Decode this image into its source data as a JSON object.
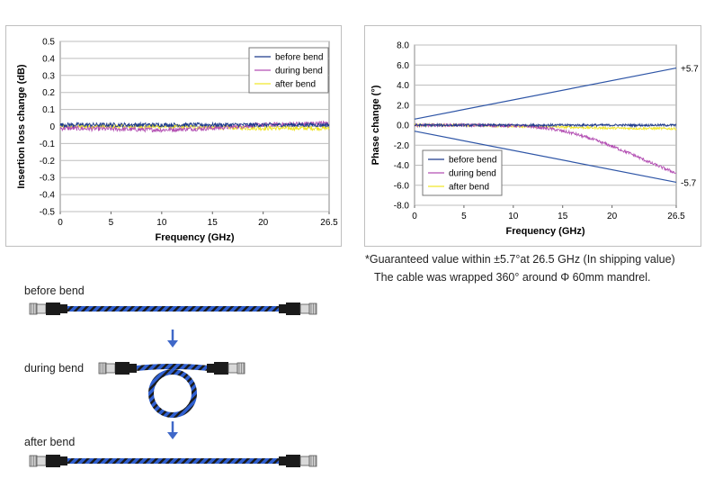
{
  "colors": {
    "before": "#1f3b8c",
    "during": "#b34fb3",
    "after": "#f0e62a",
    "guarantee": "#2e55a6",
    "grid": "#bdbdbd",
    "cable_blue": "#2f5fd0",
    "cable_dark": "#1b1b1b",
    "arrow": "#3f68c8"
  },
  "chart_data": [
    {
      "type": "line",
      "xlabel": "Frequency (GHz)",
      "ylabel": "Insertion loss change (dB)",
      "xlim": [
        0,
        26.5
      ],
      "ylim": [
        -0.5,
        0.5
      ],
      "x_ticks": [
        0,
        5,
        10,
        15,
        20,
        26.5
      ],
      "x_tick_labels": [
        "0",
        "5",
        "10",
        "15",
        "20",
        "26.5"
      ],
      "y_ticks": [
        0.5,
        0.4,
        0.3,
        0.2,
        0.1,
        0,
        -0.1,
        -0.2,
        -0.3,
        -0.4,
        -0.5
      ],
      "y_tick_labels": [
        "0.5",
        "0.4",
        "0.3",
        "0.2",
        "0.1",
        "0",
        "-0.1",
        "-0.2",
        "-0.3",
        "-0.4",
        "-0.5"
      ],
      "grid": true,
      "legend_position": "top-right",
      "series": [
        {
          "name": "before bend",
          "x": [
            0,
            5,
            10,
            15,
            20,
            26.5
          ],
          "y": [
            0.01,
            0.01,
            0.01,
            0.01,
            0.01,
            0.01
          ],
          "noise": 0.012
        },
        {
          "name": "during bend",
          "x": [
            0,
            5,
            10,
            15,
            20,
            26.5
          ],
          "y": [
            -0.01,
            -0.015,
            -0.02,
            -0.01,
            0.01,
            0.02
          ],
          "noise": 0.013
        },
        {
          "name": "after bend",
          "x": [
            0,
            5,
            10,
            15,
            20,
            26.5
          ],
          "y": [
            0.0,
            0.0,
            0.0,
            -0.005,
            -0.01,
            -0.01
          ],
          "noise": 0.013
        }
      ]
    },
    {
      "type": "line",
      "xlabel": "Frequency (GHz)",
      "ylabel": "Phase change (°)",
      "xlim": [
        0,
        26.5
      ],
      "ylim": [
        -8,
        8
      ],
      "x_ticks": [
        0,
        5,
        10,
        15,
        20,
        26.5
      ],
      "x_tick_labels": [
        "0",
        "5",
        "10",
        "15",
        "20",
        "26.5"
      ],
      "y_ticks": [
        8,
        6,
        4,
        2,
        0,
        -2,
        -4,
        -6,
        -8
      ],
      "y_tick_labels": [
        "8.0",
        "6.0",
        "4.0",
        "2.0",
        "0.0",
        "-2.0",
        "-4.0",
        "-6.0",
        "-8.0"
      ],
      "grid": true,
      "legend_position": "bottom-left",
      "series": [
        {
          "name": "before bend",
          "x": [
            0,
            5,
            10,
            15,
            20,
            26.5
          ],
          "y": [
            0.0,
            0.0,
            0.0,
            0.0,
            0.0,
            0.0
          ],
          "noise": 0.12
        },
        {
          "name": "during bend",
          "x": [
            0,
            5,
            10,
            12,
            14,
            16,
            18,
            20,
            22,
            24,
            26.5
          ],
          "y": [
            0.0,
            0.0,
            -0.05,
            -0.15,
            -0.4,
            -0.8,
            -1.4,
            -2.1,
            -2.9,
            -3.8,
            -4.8
          ],
          "noise": 0.15
        },
        {
          "name": "after bend",
          "x": [
            0,
            5,
            10,
            15,
            20,
            26.5
          ],
          "y": [
            0.0,
            0.0,
            -0.1,
            -0.2,
            -0.3,
            -0.35
          ],
          "noise": 0.12
        }
      ],
      "guarantee_lines": [
        {
          "x": [
            0,
            26.5
          ],
          "y": [
            0.6,
            5.7
          ],
          "label": "+5.7"
        },
        {
          "x": [
            0,
            26.5
          ],
          "y": [
            -0.6,
            -5.7
          ],
          "label": "-5.7"
        }
      ]
    }
  ],
  "notes": {
    "guarantee": "*Guaranteed value within ±5.7°at 26.5 GHz (In shipping value)",
    "mandrel": "The cable was wrapped 360°  around Φ 60mm mandrel."
  },
  "bend_labels": {
    "before": "before bend",
    "during": "during bend",
    "after": "after bend"
  }
}
